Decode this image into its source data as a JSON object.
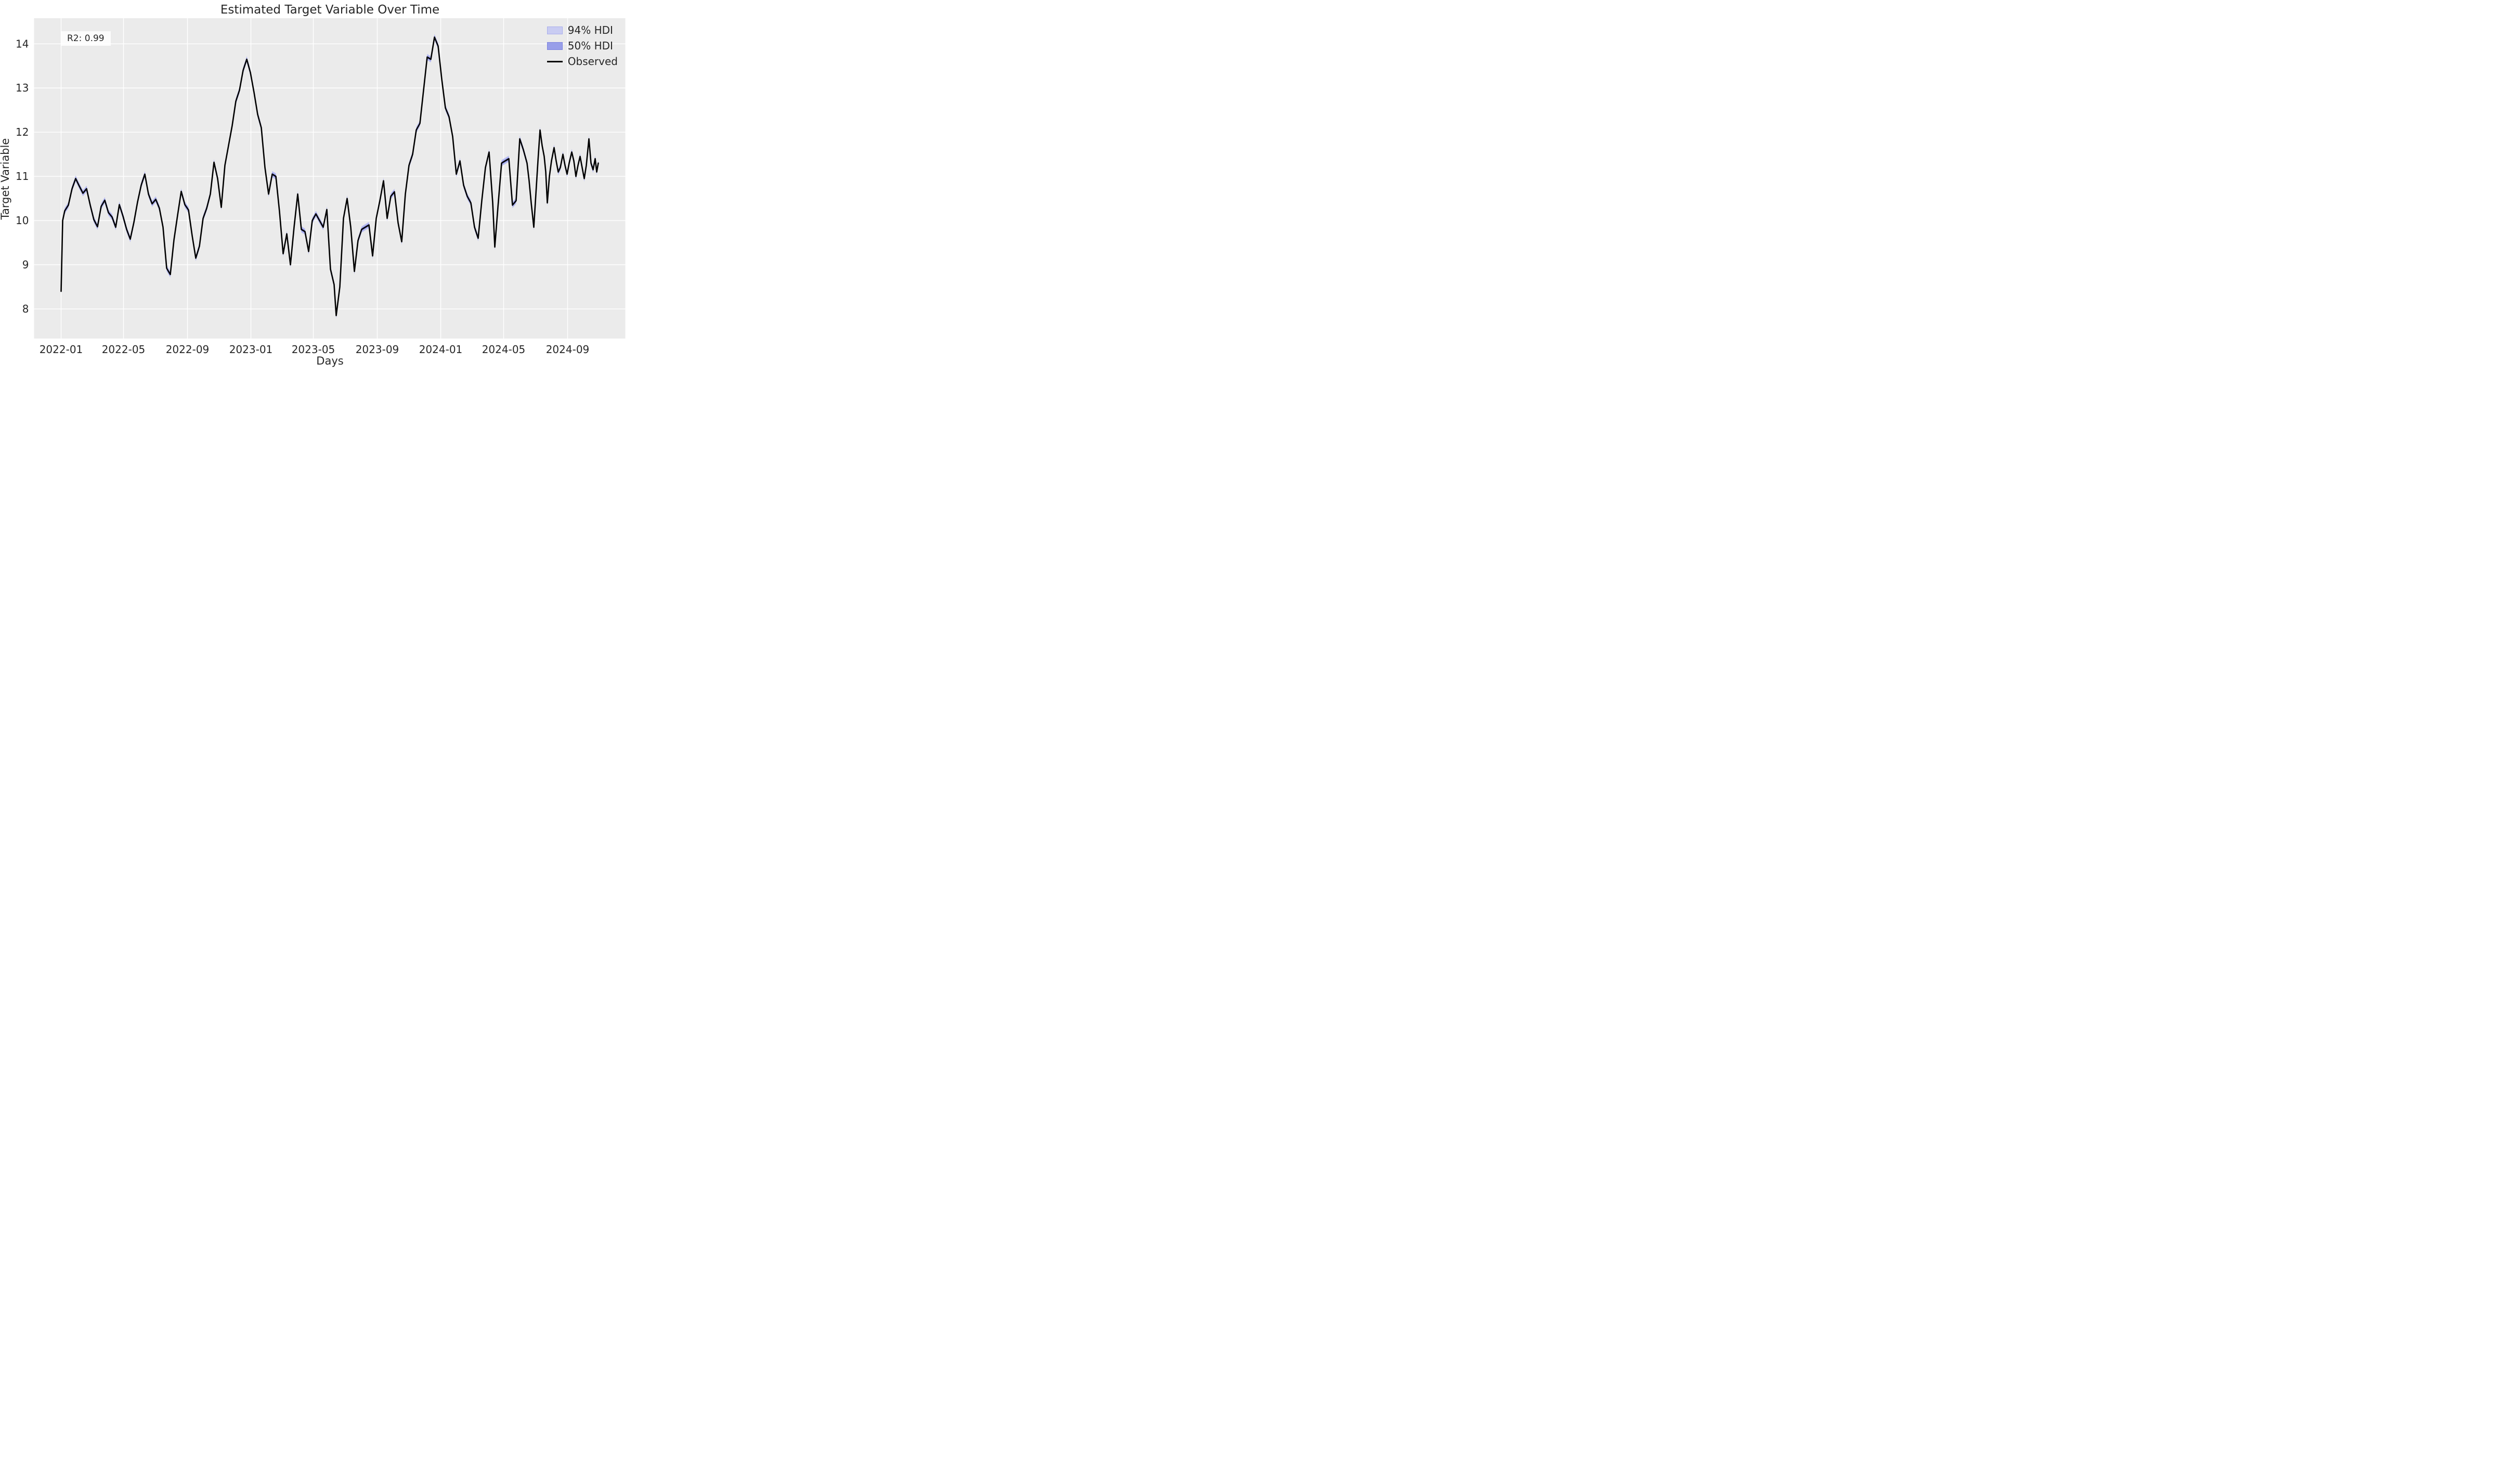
{
  "figure": {
    "title": "Estimated Target Variable Over Time",
    "xlabel": "Days",
    "ylabel": "Target Variable",
    "r2_annotation": "R2: 0.99"
  },
  "legend": {
    "position": "upper right",
    "items": [
      {
        "label": "94% HDI",
        "type": "band",
        "fill": "#c9ccf2",
        "border": "#a9aeec"
      },
      {
        "label": "50% HDI",
        "type": "band",
        "fill": "#989ee9",
        "border": "#7b82df"
      },
      {
        "label": "Observed",
        "type": "line",
        "color": "#000000"
      }
    ]
  },
  "chart_data": {
    "type": "line",
    "title": "Estimated Target Variable Over Time",
    "xlabel": "Days",
    "ylabel": "Target Variable",
    "grid": true,
    "plot_bg": "#ebebeb",
    "grid_color": "#ffffff",
    "x_axis": {
      "start": "2021-11-10",
      "end": "2024-12-21",
      "ticks": [
        {
          "label": "2022-01",
          "date": "2022-01-01"
        },
        {
          "label": "2022-05",
          "date": "2022-05-01"
        },
        {
          "label": "2022-09",
          "date": "2022-09-01"
        },
        {
          "label": "2023-01",
          "date": "2023-01-01"
        },
        {
          "label": "2023-05",
          "date": "2023-05-01"
        },
        {
          "label": "2023-09",
          "date": "2023-09-01"
        },
        {
          "label": "2024-01",
          "date": "2024-01-01"
        },
        {
          "label": "2024-05",
          "date": "2024-05-01"
        },
        {
          "label": "2024-09",
          "date": "2024-09-01"
        }
      ]
    },
    "y_axis": {
      "min": 7.33,
      "max": 14.58,
      "ticks": [
        8,
        9,
        10,
        11,
        12,
        13,
        14
      ]
    },
    "annotations": [
      {
        "text": "R2: 0.99",
        "x_date": "2022-01-01",
        "y": 13.95
      }
    ],
    "series": [
      {
        "name": "94% HDI",
        "type": "band",
        "around": "Observed",
        "half_width": 0.07,
        "color": "#b9bdf0"
      },
      {
        "name": "50% HDI",
        "type": "band",
        "around": "Observed",
        "half_width": 0.035,
        "color": "#8f95e8"
      },
      {
        "name": "Observed",
        "type": "line",
        "color": "#000000",
        "line_width": 2.6,
        "points": [
          [
            "2022-01-01",
            8.4
          ],
          [
            "2022-01-04",
            10.0
          ],
          [
            "2022-01-08",
            10.22
          ],
          [
            "2022-01-15",
            10.35
          ],
          [
            "2022-01-22",
            10.72
          ],
          [
            "2022-01-29",
            10.95
          ],
          [
            "2022-02-05",
            10.78
          ],
          [
            "2022-02-12",
            10.62
          ],
          [
            "2022-02-19",
            10.72
          ],
          [
            "2022-02-26",
            10.35
          ],
          [
            "2022-03-05",
            10.02
          ],
          [
            "2022-03-12",
            9.86
          ],
          [
            "2022-03-19",
            10.32
          ],
          [
            "2022-03-26",
            10.46
          ],
          [
            "2022-04-02",
            10.18
          ],
          [
            "2022-04-09",
            10.08
          ],
          [
            "2022-04-16",
            9.85
          ],
          [
            "2022-04-23",
            10.36
          ],
          [
            "2022-04-30",
            10.1
          ],
          [
            "2022-05-07",
            9.8
          ],
          [
            "2022-05-14",
            9.58
          ],
          [
            "2022-05-21",
            9.96
          ],
          [
            "2022-05-28",
            10.42
          ],
          [
            "2022-06-04",
            10.8
          ],
          [
            "2022-06-11",
            11.05
          ],
          [
            "2022-06-18",
            10.6
          ],
          [
            "2022-06-25",
            10.38
          ],
          [
            "2022-07-02",
            10.48
          ],
          [
            "2022-07-09",
            10.28
          ],
          [
            "2022-07-16",
            9.85
          ],
          [
            "2022-07-23",
            8.92
          ],
          [
            "2022-07-30",
            8.78
          ],
          [
            "2022-08-06",
            9.56
          ],
          [
            "2022-08-13",
            10.12
          ],
          [
            "2022-08-20",
            10.66
          ],
          [
            "2022-08-27",
            10.36
          ],
          [
            "2022-09-03",
            10.24
          ],
          [
            "2022-09-10",
            9.66
          ],
          [
            "2022-09-17",
            9.15
          ],
          [
            "2022-09-24",
            9.42
          ],
          [
            "2022-10-01",
            10.05
          ],
          [
            "2022-10-08",
            10.28
          ],
          [
            "2022-10-15",
            10.6
          ],
          [
            "2022-10-22",
            11.32
          ],
          [
            "2022-10-29",
            10.95
          ],
          [
            "2022-11-05",
            10.3
          ],
          [
            "2022-11-12",
            11.25
          ],
          [
            "2022-11-19",
            11.7
          ],
          [
            "2022-11-26",
            12.15
          ],
          [
            "2022-12-03",
            12.7
          ],
          [
            "2022-12-10",
            12.95
          ],
          [
            "2022-12-17",
            13.4
          ],
          [
            "2022-12-24",
            13.65
          ],
          [
            "2022-12-31",
            13.35
          ],
          [
            "2023-01-07",
            12.9
          ],
          [
            "2023-01-14",
            12.4
          ],
          [
            "2023-01-21",
            12.1
          ],
          [
            "2023-01-28",
            11.2
          ],
          [
            "2023-02-04",
            10.6
          ],
          [
            "2023-02-11",
            11.05
          ],
          [
            "2023-02-18",
            11.0
          ],
          [
            "2023-02-25",
            10.2
          ],
          [
            "2023-03-04",
            9.25
          ],
          [
            "2023-03-11",
            9.7
          ],
          [
            "2023-03-18",
            9.0
          ],
          [
            "2023-03-25",
            9.85
          ],
          [
            "2023-04-01",
            10.6
          ],
          [
            "2023-04-08",
            9.8
          ],
          [
            "2023-04-15",
            9.75
          ],
          [
            "2023-04-22",
            9.3
          ],
          [
            "2023-04-29",
            10.0
          ],
          [
            "2023-05-06",
            10.15
          ],
          [
            "2023-05-13",
            10.0
          ],
          [
            "2023-05-20",
            9.85
          ],
          [
            "2023-05-27",
            10.25
          ],
          [
            "2023-06-03",
            8.9
          ],
          [
            "2023-06-10",
            8.55
          ],
          [
            "2023-06-14",
            7.85
          ],
          [
            "2023-06-21",
            8.5
          ],
          [
            "2023-06-28",
            10.05
          ],
          [
            "2023-07-05",
            10.5
          ],
          [
            "2023-07-12",
            9.85
          ],
          [
            "2023-07-19",
            8.85
          ],
          [
            "2023-07-26",
            9.55
          ],
          [
            "2023-08-02",
            9.8
          ],
          [
            "2023-08-09",
            9.85
          ],
          [
            "2023-08-16",
            9.9
          ],
          [
            "2023-08-23",
            9.2
          ],
          [
            "2023-08-30",
            10.05
          ],
          [
            "2023-09-06",
            10.45
          ],
          [
            "2023-09-13",
            10.9
          ],
          [
            "2023-09-20",
            10.05
          ],
          [
            "2023-09-27",
            10.55
          ],
          [
            "2023-10-04",
            10.65
          ],
          [
            "2023-10-11",
            9.95
          ],
          [
            "2023-10-18",
            9.52
          ],
          [
            "2023-10-25",
            10.6
          ],
          [
            "2023-11-01",
            11.25
          ],
          [
            "2023-11-08",
            11.5
          ],
          [
            "2023-11-15",
            12.05
          ],
          [
            "2023-11-22",
            12.2
          ],
          [
            "2023-11-29",
            12.95
          ],
          [
            "2023-12-06",
            13.7
          ],
          [
            "2023-12-13",
            13.65
          ],
          [
            "2023-12-20",
            14.15
          ],
          [
            "2023-12-27",
            13.95
          ],
          [
            "2024-01-03",
            13.2
          ],
          [
            "2024-01-10",
            12.55
          ],
          [
            "2024-01-17",
            12.35
          ],
          [
            "2024-01-24",
            11.9
          ],
          [
            "2024-01-31",
            11.05
          ],
          [
            "2024-02-07",
            11.35
          ],
          [
            "2024-02-14",
            10.8
          ],
          [
            "2024-02-21",
            10.55
          ],
          [
            "2024-02-28",
            10.4
          ],
          [
            "2024-03-06",
            9.85
          ],
          [
            "2024-03-13",
            9.6
          ],
          [
            "2024-03-20",
            10.45
          ],
          [
            "2024-03-27",
            11.2
          ],
          [
            "2024-04-03",
            11.55
          ],
          [
            "2024-04-10",
            10.4
          ],
          [
            "2024-04-14",
            9.4
          ],
          [
            "2024-04-20",
            10.3
          ],
          [
            "2024-04-27",
            11.3
          ],
          [
            "2024-05-04",
            11.35
          ],
          [
            "2024-05-11",
            11.4
          ],
          [
            "2024-05-18",
            10.35
          ],
          [
            "2024-05-25",
            10.45
          ],
          [
            "2024-06-01",
            11.85
          ],
          [
            "2024-06-08",
            11.6
          ],
          [
            "2024-06-15",
            11.3
          ],
          [
            "2024-06-19",
            10.9
          ],
          [
            "2024-06-23",
            10.4
          ],
          [
            "2024-06-28",
            9.85
          ],
          [
            "2024-07-02",
            10.6
          ],
          [
            "2024-07-06",
            11.35
          ],
          [
            "2024-07-10",
            12.05
          ],
          [
            "2024-07-14",
            11.7
          ],
          [
            "2024-07-18",
            11.45
          ],
          [
            "2024-07-21",
            11.1
          ],
          [
            "2024-07-24",
            10.4
          ],
          [
            "2024-07-28",
            11.0
          ],
          [
            "2024-08-01",
            11.35
          ],
          [
            "2024-08-06",
            11.65
          ],
          [
            "2024-08-10",
            11.35
          ],
          [
            "2024-08-14",
            11.1
          ],
          [
            "2024-08-18",
            11.2
          ],
          [
            "2024-08-23",
            11.5
          ],
          [
            "2024-08-27",
            11.25
          ],
          [
            "2024-08-31",
            11.05
          ],
          [
            "2024-09-04",
            11.3
          ],
          [
            "2024-09-09",
            11.55
          ],
          [
            "2024-09-13",
            11.35
          ],
          [
            "2024-09-17",
            11.0
          ],
          [
            "2024-09-21",
            11.25
          ],
          [
            "2024-09-25",
            11.45
          ],
          [
            "2024-09-29",
            11.2
          ],
          [
            "2024-10-03",
            10.95
          ],
          [
            "2024-10-07",
            11.25
          ],
          [
            "2024-10-12",
            11.85
          ],
          [
            "2024-10-16",
            11.3
          ],
          [
            "2024-10-20",
            11.15
          ],
          [
            "2024-10-24",
            11.4
          ],
          [
            "2024-10-27",
            11.1
          ],
          [
            "2024-10-30",
            11.3
          ]
        ]
      }
    ]
  }
}
